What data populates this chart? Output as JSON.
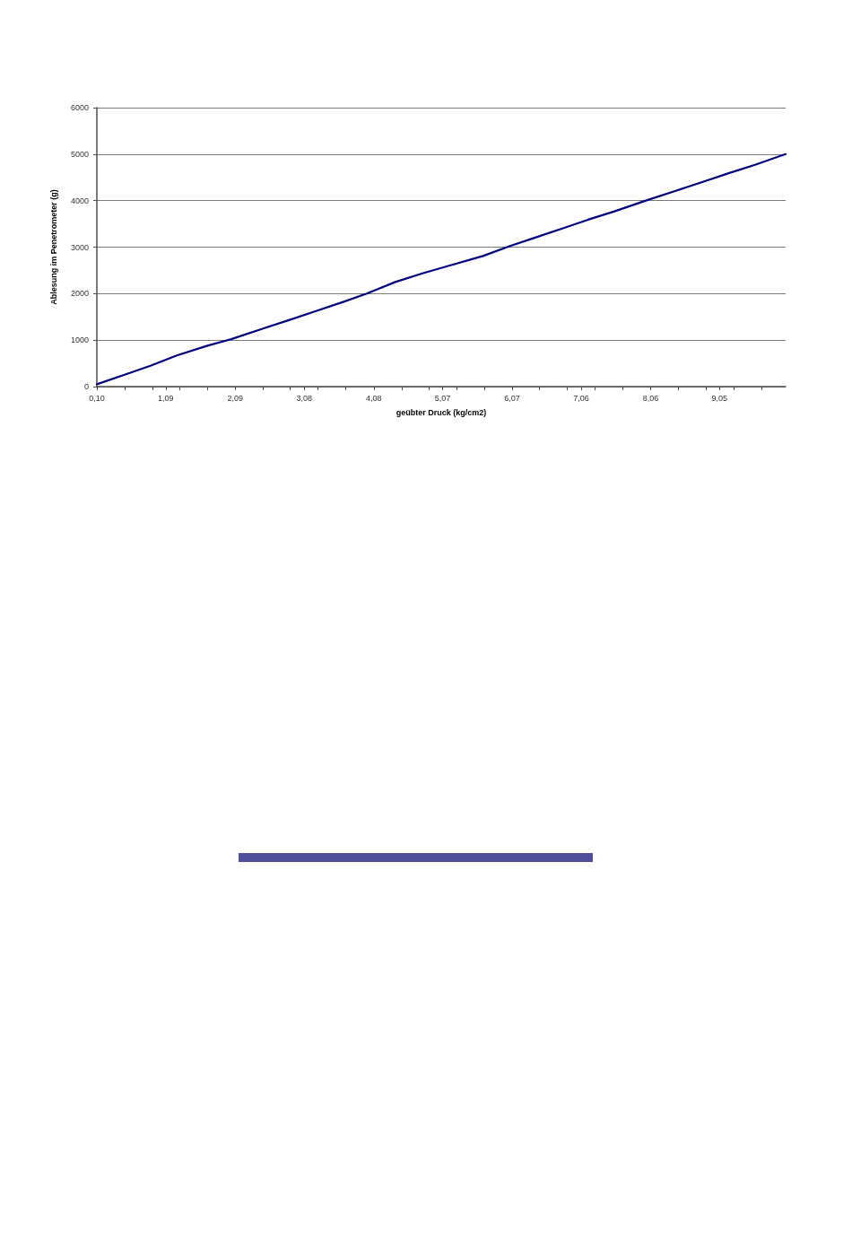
{
  "chart_data": {
    "type": "line",
    "xlabel": "geübter Druck (kg/cm2)",
    "ylabel": "Ablesung im Penetrometer (g)",
    "x": [
      0.1,
      0.49,
      0.87,
      1.25,
      1.69,
      2.03,
      2.51,
      2.88,
      3.26,
      3.64,
      3.98,
      4.39,
      4.77,
      5.16,
      5.65,
      6.03,
      6.41,
      6.79,
      7.16,
      7.54,
      8.01,
      8.42,
      8.8,
      9.18,
      9.56,
      10.0
    ],
    "series": [
      {
        "color": "#000080",
        "values": [
          50,
          250,
          450,
          670,
          880,
          1020,
          1260,
          1440,
          1630,
          1820,
          2000,
          2250,
          2430,
          2600,
          2810,
          3020,
          3210,
          3400,
          3590,
          3770,
          4010,
          4210,
          4400,
          4590,
          4770,
          5000
        ]
      }
    ],
    "xlim": [
      0.1,
      10.0
    ],
    "xticks": [
      {
        "value": 0.1,
        "label": "0,10"
      },
      {
        "value": 0.5,
        "label": null
      },
      {
        "value": 0.9,
        "label": null
      },
      {
        "value": 1.09,
        "label": "1,09"
      },
      {
        "value": 1.29,
        "label": null
      },
      {
        "value": 1.69,
        "label": null
      },
      {
        "value": 2.09,
        "label": "2,09"
      },
      {
        "value": 2.49,
        "label": null
      },
      {
        "value": 2.88,
        "label": null
      },
      {
        "value": 3.08,
        "label": "3,08"
      },
      {
        "value": 3.28,
        "label": null
      },
      {
        "value": 3.68,
        "label": null
      },
      {
        "value": 4.08,
        "label": "4,08"
      },
      {
        "value": 4.48,
        "label": null
      },
      {
        "value": 4.87,
        "label": null
      },
      {
        "value": 5.07,
        "label": "5,07"
      },
      {
        "value": 5.27,
        "label": null
      },
      {
        "value": 5.67,
        "label": null
      },
      {
        "value": 6.07,
        "label": "6,07"
      },
      {
        "value": 6.46,
        "label": null
      },
      {
        "value": 6.86,
        "label": null
      },
      {
        "value": 7.06,
        "label": "7,06"
      },
      {
        "value": 7.26,
        "label": null
      },
      {
        "value": 7.66,
        "label": null
      },
      {
        "value": 8.06,
        "label": "8,06"
      },
      {
        "value": 8.45,
        "label": null
      },
      {
        "value": 8.85,
        "label": null
      },
      {
        "value": 9.05,
        "label": "9,05"
      },
      {
        "value": 9.25,
        "label": null
      },
      {
        "value": 9.65,
        "label": null
      }
    ],
    "ylim": [
      0,
      6000
    ],
    "yticks": [
      0,
      1000,
      2000,
      3000,
      4000,
      5000,
      6000
    ],
    "grid": "y",
    "marker": "none",
    "line_style": "solid"
  }
}
